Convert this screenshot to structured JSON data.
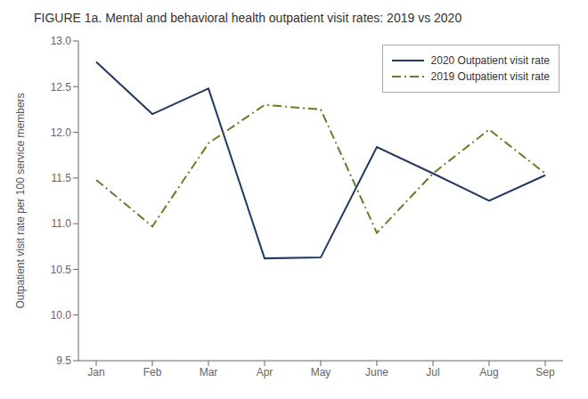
{
  "chart_data": {
    "type": "line",
    "title": "FIGURE 1a. Mental and behavioral health outpatient visit rates: 2019 vs 2020",
    "categories": [
      "Jan",
      "Feb",
      "Mar",
      "Apr",
      "May",
      "June",
      "Jul",
      "Aug",
      "Sep"
    ],
    "series": [
      {
        "name": "2020 Outpatient visit rate",
        "color": "#1f3864",
        "line_style": "solid",
        "values": [
          12.77,
          12.2,
          12.48,
          10.62,
          10.63,
          11.84,
          11.55,
          11.25,
          11.53
        ]
      },
      {
        "name": "2019 Outpatient visit rate",
        "color": "#6b7c28",
        "line_style": "dashdot",
        "values": [
          11.48,
          10.97,
          11.88,
          12.3,
          12.25,
          10.9,
          11.55,
          12.03,
          11.55
        ]
      }
    ],
    "ylabel": "Outpatient visit rate per 100 service members",
    "ylim": [
      9.5,
      13.0
    ],
    "yticks": [
      9.5,
      {
        "value": 10.0,
        "label": "10.0"
      },
      10.5,
      {
        "value": 11.0,
        "label": "11.0"
      },
      11.5,
      {
        "value": 12.0,
        "label": "12.0"
      },
      12.5,
      {
        "value": 13.0,
        "label": "13.0"
      }
    ],
    "grid": false,
    "legend": "upper right"
  }
}
